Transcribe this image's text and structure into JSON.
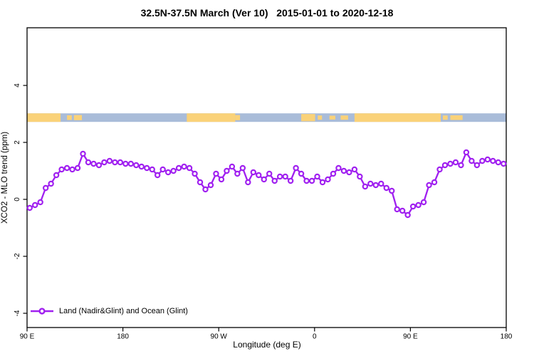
{
  "title": "32.5N-37.5N March (Ver 10)   2015-01-01 to 2020-12-18",
  "axes": {
    "x": {
      "title": "Longitude (deg E)"
    },
    "y": {
      "title": "XCO2 - MLO trend (ppm)"
    }
  },
  "legend": {
    "label": "Land (Nadir&Glint) and Ocean (Glint)"
  },
  "colors": {
    "series": "#A020F0",
    "land": "#FAD279",
    "ocean": "#A9BCD9",
    "axis": "#000000"
  },
  "chart_data": {
    "type": "line",
    "title": "32.5N-37.5N March (Ver 10)   2015-01-01 to 2020-12-18",
    "xlabel": "Longitude (deg E)",
    "ylabel": "XCO2 - MLO trend (ppm)",
    "series_name": "Land (Nadir&Glint) and Ocean (Glint)",
    "marker": "open-circle",
    "xlim": [
      90,
      540
    ],
    "ylim": [
      -4.4,
      5.9
    ],
    "x_ticks": [
      {
        "lon": 90,
        "label": "90 E"
      },
      {
        "lon": 180,
        "label": "180"
      },
      {
        "lon": 270,
        "label": "90 W"
      },
      {
        "lon": 360,
        "label": "0"
      },
      {
        "lon": 450,
        "label": "90 E"
      },
      {
        "lon": 540,
        "label": "180"
      }
    ],
    "y_ticks": [
      {
        "val": -4,
        "label": "-4"
      },
      {
        "val": -2,
        "label": "-2"
      },
      {
        "val": 0,
        "label": "0"
      },
      {
        "val": 2,
        "label": "2"
      },
      {
        "val": 4,
        "label": "4"
      }
    ],
    "x": [
      92.5,
      97.5,
      102.5,
      107.5,
      112.5,
      117.5,
      122.5,
      127.5,
      132.5,
      137.5,
      142.5,
      147.5,
      152.5,
      157.5,
      162.5,
      167.5,
      172.5,
      177.5,
      182.5,
      187.5,
      192.5,
      197.5,
      202.5,
      207.5,
      212.5,
      217.5,
      222.5,
      227.5,
      232.5,
      237.5,
      242.5,
      247.5,
      252.5,
      257.5,
      262.5,
      267.5,
      272.5,
      277.5,
      282.5,
      287.5,
      292.5,
      297.5,
      302.5,
      307.5,
      312.5,
      317.5,
      322.5,
      327.5,
      332.5,
      337.5,
      342.5,
      347.5,
      352.5,
      357.5,
      362.5,
      367.5,
      372.5,
      377.5,
      382.5,
      387.5,
      392.5,
      397.5,
      402.5,
      407.5,
      412.5,
      417.5,
      422.5,
      427.5,
      432.5,
      437.5,
      442.5,
      447.5,
      452.5,
      457.5,
      462.5,
      467.5,
      472.5,
      477.5,
      482.5,
      487.5,
      492.5,
      497.5,
      502.5,
      507.5,
      512.5,
      517.5,
      522.5,
      527.5,
      532.5,
      537.5
    ],
    "values": [
      -0.3,
      -0.2,
      -0.1,
      0.4,
      0.55,
      0.85,
      1.05,
      1.1,
      1.05,
      1.1,
      1.6,
      1.3,
      1.25,
      1.2,
      1.3,
      1.35,
      1.3,
      1.3,
      1.25,
      1.25,
      1.2,
      1.15,
      1.1,
      1.05,
      0.85,
      1.05,
      0.95,
      1.0,
      1.1,
      1.15,
      1.1,
      0.9,
      0.6,
      0.35,
      0.5,
      0.9,
      0.7,
      1.0,
      1.15,
      0.9,
      1.1,
      0.6,
      0.95,
      0.85,
      0.7,
      0.9,
      0.65,
      0.8,
      0.8,
      0.65,
      1.1,
      0.9,
      0.65,
      0.65,
      0.8,
      0.6,
      0.7,
      0.9,
      1.1,
      1.0,
      0.95,
      1.05,
      0.8,
      0.45,
      0.55,
      0.5,
      0.55,
      0.4,
      0.3,
      -0.35,
      -0.4,
      -0.55,
      -0.25,
      -0.2,
      -0.1,
      0.5,
      0.6,
      1.05,
      1.2,
      1.25,
      1.3,
      1.2,
      1.65,
      1.35,
      1.2,
      1.35,
      1.4,
      1.35,
      1.3,
      1.25
    ],
    "map_strip": {
      "y_top_val": 3.02,
      "y_bottom_val": 2.72,
      "ocean_color": "#A9BCD9",
      "land_color": "#FAD279",
      "land_segments_lon": [
        {
          "lon0": 90,
          "lon1": 121.5,
          "h": 1
        },
        {
          "lon0": 127.5,
          "lon1": 132,
          "h": 0.55
        },
        {
          "lon0": 134,
          "lon1": 141.5,
          "h": 0.6
        },
        {
          "lon0": 240,
          "lon1": 285.5,
          "h": 1
        },
        {
          "lon0": 285.5,
          "lon1": 290,
          "h": 0.6
        },
        {
          "lon0": 347.5,
          "lon1": 360.5,
          "h": 0.85
        },
        {
          "lon0": 363,
          "lon1": 367,
          "h": 0.5
        },
        {
          "lon0": 374,
          "lon1": 379.5,
          "h": 0.45
        },
        {
          "lon0": 384.5,
          "lon1": 391.5,
          "h": 0.5
        },
        {
          "lon0": 397.5,
          "lon1": 478.5,
          "h": 1
        },
        {
          "lon0": 480.5,
          "lon1": 485,
          "h": 0.5
        },
        {
          "lon0": 487.5,
          "lon1": 499,
          "h": 0.55
        }
      ]
    }
  }
}
